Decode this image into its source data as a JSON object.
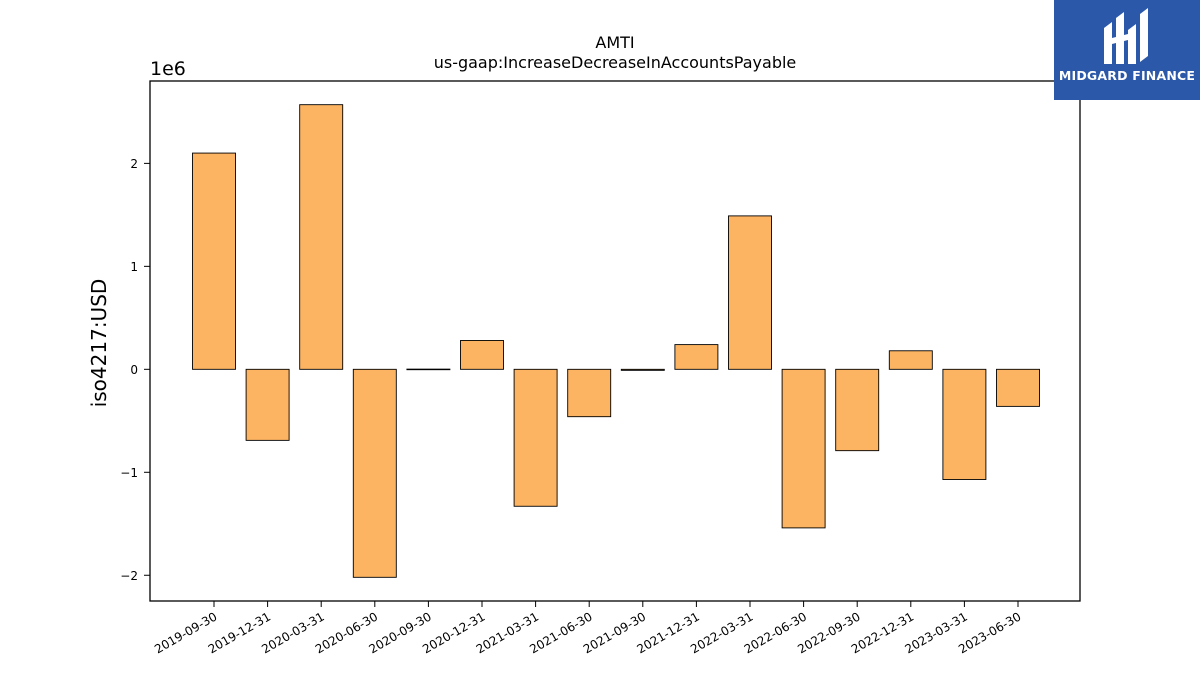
{
  "brand": {
    "name": "MIDGARD FINANCE",
    "color": "#2b58a8"
  },
  "chart_data": {
    "type": "bar",
    "title": "AMTI",
    "subtitle": "us-gaap:IncreaseDecreaseInAccountsPayable",
    "ylabel": "iso4217:USD",
    "xlabel": "",
    "scale_label": "1e6",
    "ylim": [
      -2.25,
      2.8
    ],
    "yticks": [
      -2,
      -1,
      0,
      1,
      2
    ],
    "ytick_labels": [
      "−2",
      "−1",
      "0",
      "1",
      "2"
    ],
    "bar_color": "#fdb462",
    "grid": false,
    "categories": [
      "2019-09-30",
      "2019-12-31",
      "2020-03-31",
      "2020-06-30",
      "2020-09-30",
      "2020-12-31",
      "2021-03-31",
      "2021-06-30",
      "2021-09-30",
      "2021-12-31",
      "2022-03-31",
      "2022-06-30",
      "2022-09-30",
      "2022-12-31",
      "2023-03-31",
      "2023-06-30"
    ],
    "values": [
      2.1,
      -0.69,
      2.57,
      -2.02,
      0.002,
      0.28,
      -1.33,
      -0.46,
      -0.01,
      0.24,
      1.49,
      -1.54,
      -0.79,
      0.18,
      -1.07,
      -0.36
    ]
  }
}
